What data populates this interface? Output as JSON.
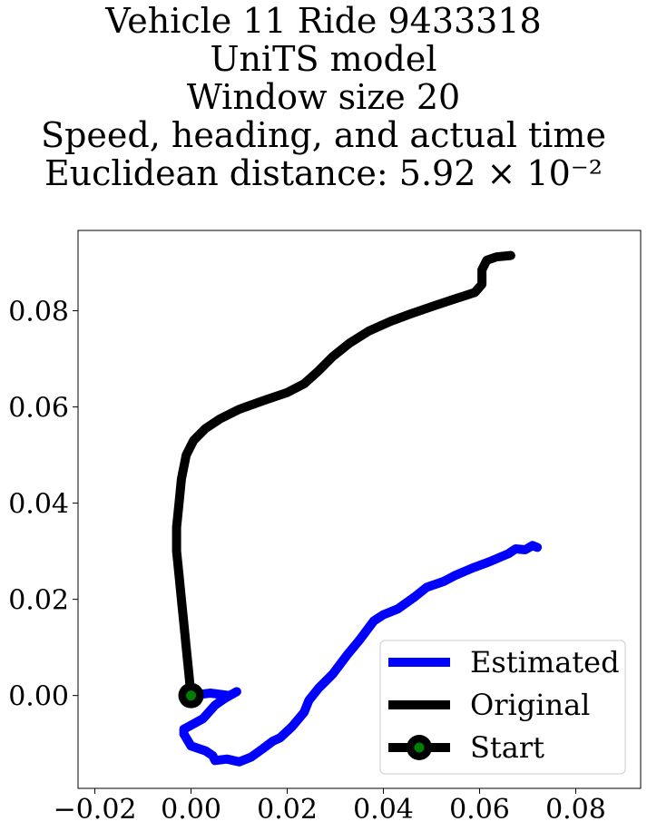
{
  "title_lines": [
    "Vehicle 11 Ride 9433318",
    "UniTS model",
    "Window size 20",
    "Speed, heading, and actual time",
    "Euclidean distance: 5.92 × 10⁻²"
  ],
  "chart_data": {
    "type": "line",
    "title": "Vehicle 11 Ride 9433318 / UniTS model / Window size 20 / Speed, heading, and actual time / Euclidean distance: 5.92 × 10⁻²",
    "xlabel": "",
    "ylabel": "",
    "xlim": [
      -0.0235,
      0.0935
    ],
    "ylim": [
      -0.0193,
      0.0967
    ],
    "xticks": [
      -0.02,
      0.0,
      0.02,
      0.04,
      0.06,
      0.08
    ],
    "yticks": [
      0.0,
      0.02,
      0.04,
      0.06,
      0.08
    ],
    "xtick_labels": [
      "−0.02",
      "0.00",
      "0.02",
      "0.04",
      "0.06",
      "0.08"
    ],
    "ytick_labels": [
      "0.00",
      "0.02",
      "0.04",
      "0.06",
      "0.08"
    ],
    "grid": false,
    "legend_position": "lower-right",
    "series": [
      {
        "name": "Estimated",
        "color": "#0000ff",
        "points": [
          [
            0.0,
            0.0
          ],
          [
            0.004,
            0.0005
          ],
          [
            0.008,
            0.0
          ],
          [
            0.0095,
            0.0008
          ],
          [
            0.007,
            -0.0006
          ],
          [
            0.005,
            -0.002
          ],
          [
            0.0025,
            -0.0048
          ],
          [
            -0.0015,
            -0.007
          ],
          [
            -0.0015,
            -0.008
          ],
          [
            0.0,
            -0.0105
          ],
          [
            0.003,
            -0.0115
          ],
          [
            0.0045,
            -0.0125
          ],
          [
            0.005,
            -0.0135
          ],
          [
            0.0075,
            -0.0132
          ],
          [
            0.01,
            -0.0138
          ],
          [
            0.0125,
            -0.0128
          ],
          [
            0.015,
            -0.011
          ],
          [
            0.017,
            -0.0095
          ],
          [
            0.0185,
            -0.0088
          ],
          [
            0.021,
            -0.0065
          ],
          [
            0.0235,
            -0.0035
          ],
          [
            0.0245,
            -0.001
          ],
          [
            0.0265,
            0.0015
          ],
          [
            0.0295,
            0.0045
          ],
          [
            0.0325,
            0.0085
          ],
          [
            0.035,
            0.0115
          ],
          [
            0.038,
            0.0155
          ],
          [
            0.04,
            0.0168
          ],
          [
            0.043,
            0.018
          ],
          [
            0.0465,
            0.0205
          ],
          [
            0.049,
            0.0225
          ],
          [
            0.0525,
            0.0237
          ],
          [
            0.055,
            0.025
          ],
          [
            0.0585,
            0.0265
          ],
          [
            0.062,
            0.0278
          ],
          [
            0.066,
            0.0295
          ],
          [
            0.0675,
            0.0305
          ],
          [
            0.0695,
            0.0303
          ],
          [
            0.071,
            0.0312
          ],
          [
            0.072,
            0.0308
          ]
        ]
      },
      {
        "name": "Original",
        "color": "#000000",
        "points": [
          [
            0.0,
            0.0
          ],
          [
            -0.0005,
            0.005
          ],
          [
            -0.001,
            0.01
          ],
          [
            -0.0015,
            0.015
          ],
          [
            -0.002,
            0.02
          ],
          [
            -0.0025,
            0.025
          ],
          [
            -0.003,
            0.03
          ],
          [
            -0.003,
            0.035
          ],
          [
            -0.0025,
            0.04
          ],
          [
            -0.002,
            0.045
          ],
          [
            -0.001,
            0.05
          ],
          [
            0.0005,
            0.053
          ],
          [
            0.003,
            0.0555
          ],
          [
            0.006,
            0.0575
          ],
          [
            0.01,
            0.0595
          ],
          [
            0.015,
            0.0613
          ],
          [
            0.02,
            0.063
          ],
          [
            0.0235,
            0.0648
          ],
          [
            0.0265,
            0.0675
          ],
          [
            0.0295,
            0.0705
          ],
          [
            0.033,
            0.0733
          ],
          [
            0.037,
            0.0758
          ],
          [
            0.0415,
            0.0778
          ],
          [
            0.0455,
            0.0793
          ],
          [
            0.0505,
            0.081
          ],
          [
            0.055,
            0.0825
          ],
          [
            0.059,
            0.0838
          ],
          [
            0.0605,
            0.0855
          ],
          [
            0.0605,
            0.0885
          ],
          [
            0.0615,
            0.0905
          ],
          [
            0.0635,
            0.0912
          ],
          [
            0.0665,
            0.0915
          ]
        ]
      }
    ],
    "start_marker": {
      "name": "Start",
      "x": 0.0,
      "y": 0.0,
      "color": "#008000",
      "edge_color": "#000000"
    },
    "legend": [
      "Estimated",
      "Original",
      "Start"
    ]
  }
}
